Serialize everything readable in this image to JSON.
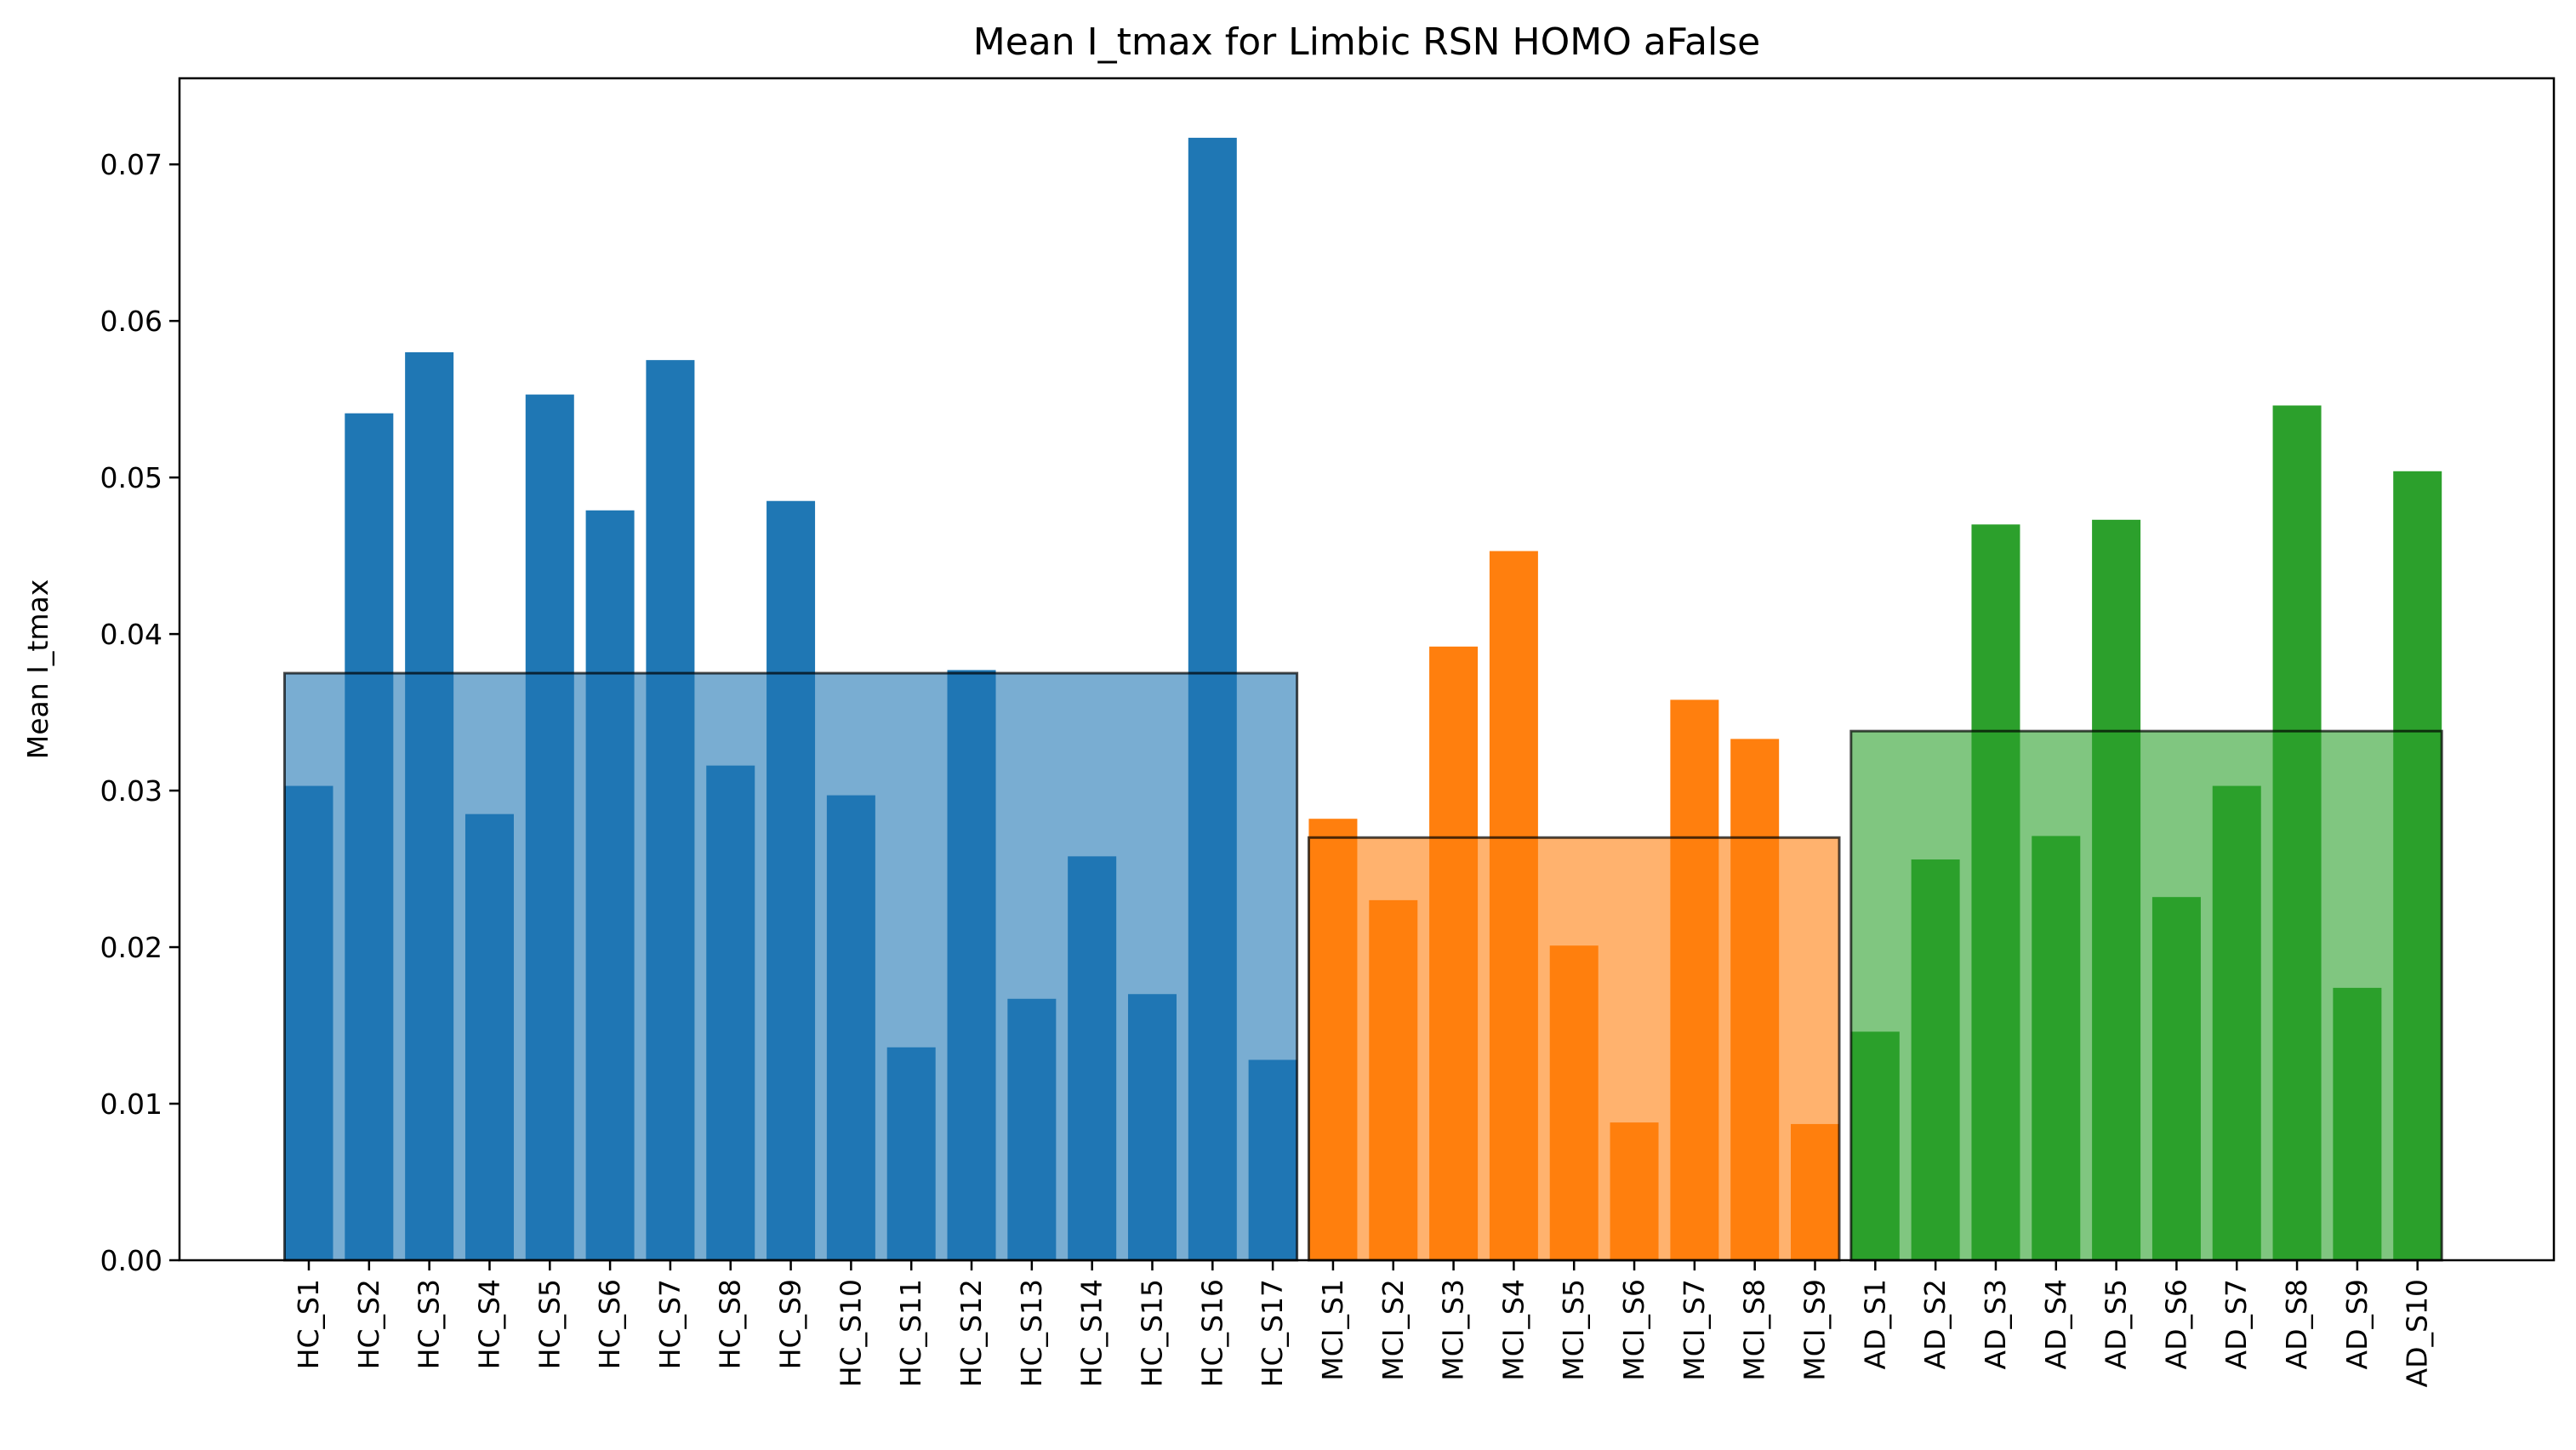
{
  "chart_data": {
    "type": "bar",
    "title": "Mean I_tmax for Limbic RSN HOMO aFalse",
    "xlabel": "",
    "ylabel": "Mean I_tmax",
    "ylim": [
      0,
      0.0755
    ],
    "yticks": [
      "0.00",
      "0.01",
      "0.02",
      "0.03",
      "0.04",
      "0.05",
      "0.06",
      "0.07"
    ],
    "grid": false,
    "categories": [
      "HC_S1",
      "HC_S2",
      "HC_S3",
      "HC_S4",
      "HC_S5",
      "HC_S6",
      "HC_S7",
      "HC_S8",
      "HC_S9",
      "HC_S10",
      "HC_S11",
      "HC_S12",
      "HC_S13",
      "HC_S14",
      "HC_S15",
      "HC_S16",
      "HC_S17",
      "MCI_S1",
      "MCI_S2",
      "MCI_S3",
      "MCI_S4",
      "MCI_S5",
      "MCI_S6",
      "MCI_S7",
      "MCI_S8",
      "MCI_S9",
      "AD_S1",
      "AD_S2",
      "AD_S3",
      "AD_S4",
      "AD_S5",
      "AD_S6",
      "AD_S7",
      "AD_S8",
      "AD_S9",
      "AD_S10"
    ],
    "groups": [
      {
        "color": "#1f77b4",
        "mean": 0.0375,
        "categories": [
          "HC_S1",
          "HC_S2",
          "HC_S3",
          "HC_S4",
          "HC_S5",
          "HC_S6",
          "HC_S7",
          "HC_S8",
          "HC_S9",
          "HC_S10",
          "HC_S11",
          "HC_S12",
          "HC_S13",
          "HC_S14",
          "HC_S15",
          "HC_S16",
          "HC_S17"
        ],
        "values": [
          0.0303,
          0.0541,
          0.058,
          0.0285,
          0.0553,
          0.0479,
          0.0575,
          0.0316,
          0.0485,
          0.0297,
          0.0136,
          0.0377,
          0.0167,
          0.0258,
          0.017,
          0.0717,
          0.0128
        ]
      },
      {
        "color": "#ff7f0e",
        "mean": 0.027,
        "categories": [
          "MCI_S1",
          "MCI_S2",
          "MCI_S3",
          "MCI_S4",
          "MCI_S5",
          "MCI_S6",
          "MCI_S7",
          "MCI_S8",
          "MCI_S9"
        ],
        "values": [
          0.0282,
          0.023,
          0.0392,
          0.0453,
          0.0201,
          0.0088,
          0.0358,
          0.0333,
          0.0087
        ]
      },
      {
        "color": "#2ca02c",
        "mean": 0.0338,
        "categories": [
          "AD_S1",
          "AD_S2",
          "AD_S3",
          "AD_S4",
          "AD_S5",
          "AD_S6",
          "AD_S7",
          "AD_S8",
          "AD_S9",
          "AD_S10"
        ],
        "values": [
          0.0146,
          0.0256,
          0.047,
          0.0271,
          0.0473,
          0.0232,
          0.0303,
          0.0546,
          0.0174,
          0.0504
        ]
      }
    ]
  }
}
